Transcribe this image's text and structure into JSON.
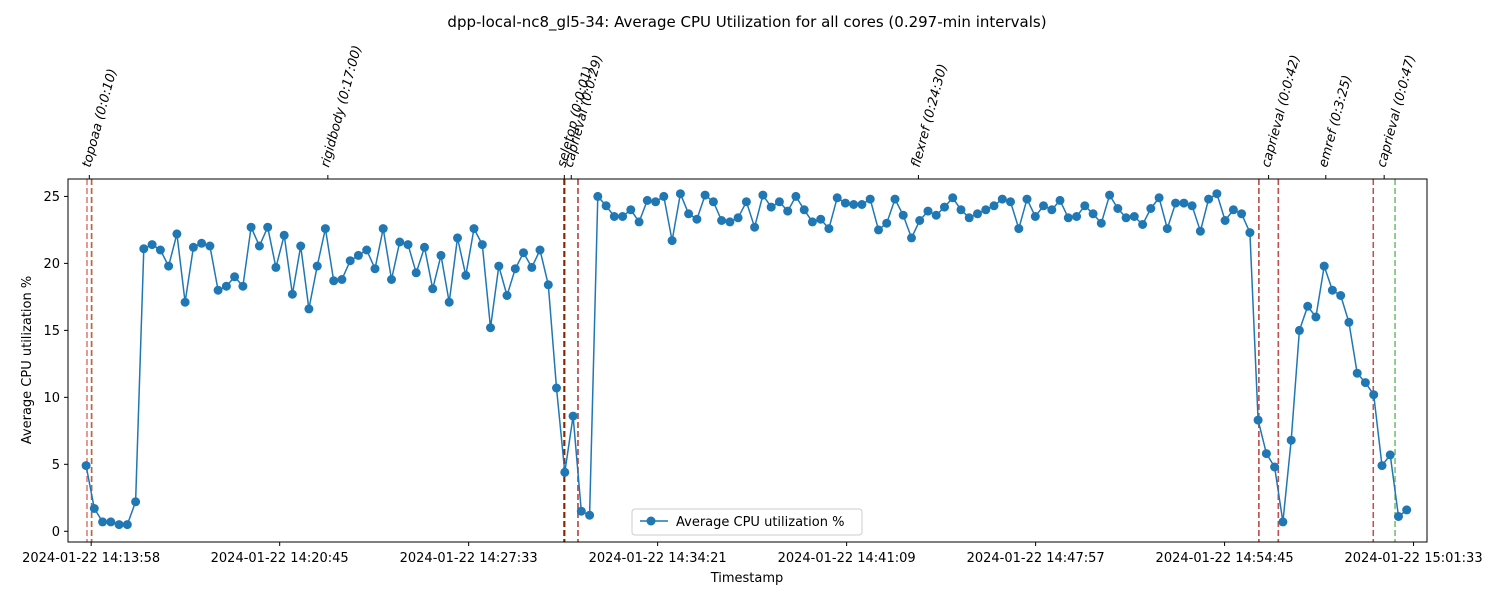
{
  "chart_data": {
    "type": "line",
    "title": "dpp-local-nc8_gl5-34: Average CPU Utilization for all cores (0.297-min intervals)",
    "xlabel": "Timestamp",
    "ylabel": "Average CPU utilization %",
    "x_start": "2024-01-22 14:13:08",
    "x_end": "2024-01-22 15:02:02",
    "xticks": [
      "2024-01-22 14:13:58",
      "2024-01-22 14:20:45",
      "2024-01-22 14:27:33",
      "2024-01-22 14:34:21",
      "2024-01-22 14:41:09",
      "2024-01-22 14:47:57",
      "2024-01-22 14:54:45",
      "2024-01-22 15:01:33"
    ],
    "ylim": [
      -0.8,
      26.3
    ],
    "yticks": [
      0,
      5,
      10,
      15,
      20,
      25
    ],
    "grid": false,
    "legend_position": "lower center",
    "series": [
      {
        "name": "Average CPU utilization %",
        "color": "#1f77b4",
        "marker": "circle",
        "interval_min": 0.297,
        "first_timestamp": "2024-01-22 14:13:47",
        "values": [
          4.9,
          1.7,
          0.7,
          0.7,
          0.5,
          0.5,
          2.2,
          21.1,
          21.4,
          21.0,
          19.8,
          22.2,
          17.1,
          21.2,
          21.5,
          21.3,
          18.0,
          18.3,
          19.0,
          18.3,
          22.7,
          21.3,
          22.7,
          19.7,
          22.1,
          17.7,
          21.3,
          16.6,
          19.8,
          22.6,
          18.7,
          18.8,
          20.2,
          20.6,
          21.0,
          19.6,
          22.6,
          18.8,
          21.6,
          21.4,
          19.3,
          21.2,
          18.1,
          20.6,
          17.1,
          21.9,
          19.1,
          22.6,
          21.4,
          15.2,
          19.8,
          17.6,
          19.6,
          20.8,
          19.7,
          21.0,
          18.4,
          10.7,
          4.4,
          8.6,
          1.5,
          1.2,
          25.0,
          24.3,
          23.5,
          23.5,
          24.0,
          23.1,
          24.7,
          24.6,
          25.0,
          21.7,
          25.2,
          23.7,
          23.3,
          25.1,
          24.6,
          23.2,
          23.1,
          23.4,
          24.6,
          22.7,
          25.1,
          24.2,
          24.6,
          23.9,
          25.0,
          24.0,
          23.1,
          23.3,
          22.6,
          24.9,
          24.5,
          24.4,
          24.4,
          24.8,
          22.5,
          23.0,
          24.8,
          23.6,
          21.9,
          23.2,
          23.9,
          23.6,
          24.2,
          24.9,
          24.0,
          23.4,
          23.7,
          24.0,
          24.3,
          24.8,
          24.6,
          22.6,
          24.8,
          23.5,
          24.3,
          24.0,
          24.7,
          23.4,
          23.5,
          24.3,
          23.7,
          23.0,
          25.1,
          24.1,
          23.4,
          23.5,
          22.9,
          24.1,
          24.9,
          22.6,
          24.5,
          24.5,
          24.3,
          22.4,
          24.8,
          25.2,
          23.2,
          24.0,
          23.7,
          22.3,
          8.3,
          5.8,
          4.8,
          0.7,
          6.8,
          15.0,
          16.8,
          16.0,
          19.8,
          18.0,
          17.6,
          15.6,
          11.8,
          11.1,
          10.2,
          4.9,
          5.7,
          1.1,
          1.6
        ]
      }
    ],
    "annotations": [
      {
        "label": "topoaa (0:0:10)",
        "start": "2024-01-22 14:13:49",
        "end": "2024-01-22 14:13:59",
        "start_color": "#e57373",
        "end_color": "#b5673f"
      },
      {
        "label": "rigidbody (0:17:00)",
        "start": "2024-01-22 14:13:59",
        "end": "2024-01-22 14:30:59",
        "start_color": "#b5673f",
        "end_color": "#b22222"
      },
      {
        "label": "seletop (0:0:01)",
        "start": "2024-01-22 14:30:59",
        "end": "2024-01-22 14:31:00",
        "start_color": "#b22222",
        "end_color": "#8b2500"
      },
      {
        "label": "caprieval (0:0:29)",
        "start": "2024-01-22 14:31:00",
        "end": "2024-01-22 14:31:29",
        "start_color": "#8b2500",
        "end_color": "#c0504d"
      },
      {
        "label": "flexref (0:24:30)",
        "start": "2024-01-22 14:31:29",
        "end": "2024-01-22 14:55:59",
        "start_color": "#c0504d",
        "end_color": "#c0504d"
      },
      {
        "label": "caprieval (0:0:42)",
        "start": "2024-01-22 14:55:59",
        "end": "2024-01-22 14:56:41",
        "start_color": "#c0504d",
        "end_color": "#c0504d"
      },
      {
        "label": "emref (0:3:25)",
        "start": "2024-01-22 14:56:41",
        "end": "2024-01-22 15:00:06",
        "start_color": "#c0504d",
        "end_color": "#c0504d"
      },
      {
        "label": "caprieval (0:0:47)",
        "start": "2024-01-22 15:00:06",
        "end": "2024-01-22 15:00:53",
        "start_color": "#c0504d",
        "end_color": "#6abf69"
      }
    ]
  }
}
